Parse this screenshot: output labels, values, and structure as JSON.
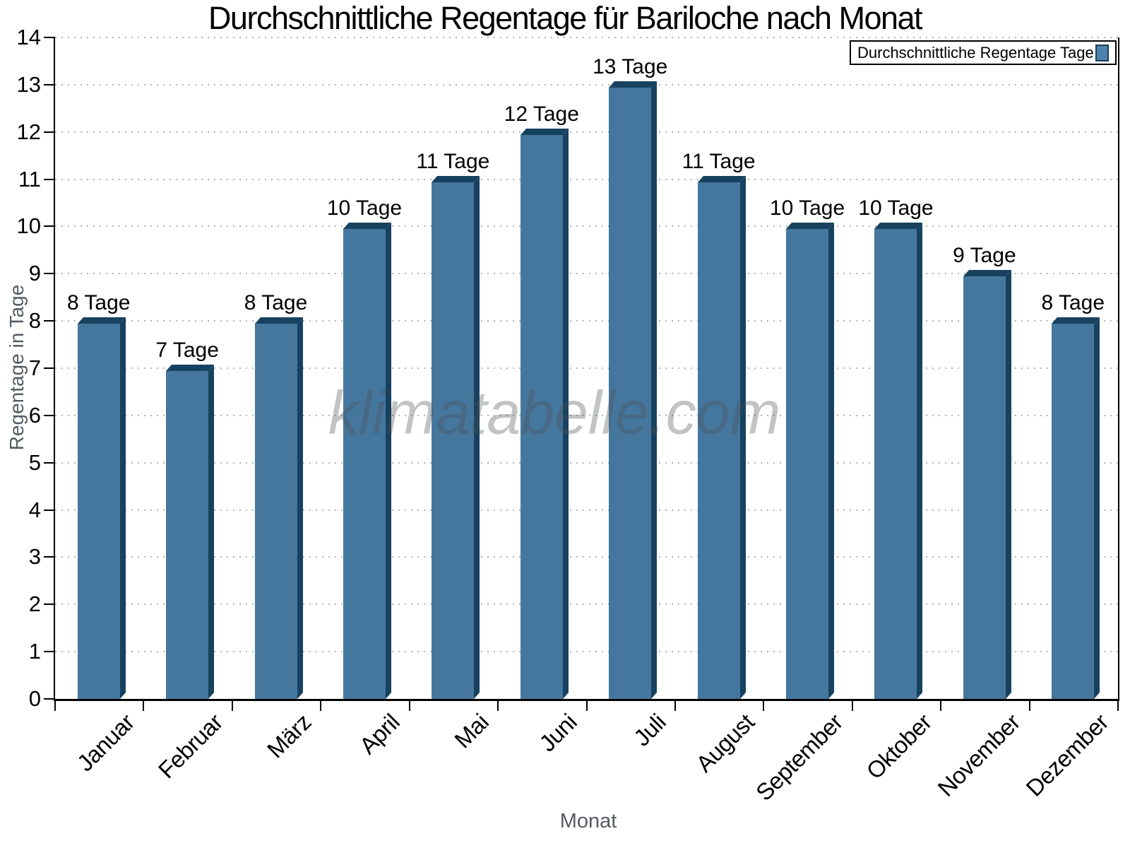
{
  "title": "Durchschnittliche Regentage für Bariloche nach Monat",
  "legend": {
    "label": "Durchschnittliche Regentage Tage"
  },
  "watermark": "klimatabelle.com",
  "chart_data": {
    "type": "bar",
    "title": "Durchschnittliche Regentage für Bariloche nach Monat",
    "categories": [
      "Januar",
      "Februar",
      "März",
      "April",
      "Mai",
      "Juni",
      "Juli",
      "August",
      "September",
      "Oktober",
      "November",
      "Dezember"
    ],
    "values": [
      8,
      7,
      8,
      10,
      11,
      12,
      13,
      11,
      10,
      10,
      9,
      8
    ],
    "bar_labels": [
      "8 Tage",
      "7 Tage",
      "8 Tage",
      "10 Tage",
      "11 Tage",
      "12 Tage",
      "13 Tage",
      "11 Tage",
      "10 Tage",
      "10 Tage",
      "9 Tage",
      "8 Tage"
    ],
    "xlabel": "Monat",
    "ylabel": "Regentage in Tage",
    "ylim": [
      0,
      14
    ],
    "ytick_step": 1,
    "ytick_labels": [
      "0",
      "1",
      "2",
      "3",
      "4",
      "5",
      "6",
      "7",
      "8",
      "9",
      "10",
      "11",
      "12",
      "13",
      "14"
    ],
    "grid": "horizontal-dotted",
    "legend_entry": "Durchschnittliche Regentage Tage",
    "legend_position": "top-right",
    "colors": {
      "bar_face": "#45779e",
      "bar_edge_dark": "#17425f",
      "legend_swatch": "#4e81ab",
      "gridline": "#b3b3b3",
      "axis": "#000000",
      "axis_title_gray": "#555b61",
      "watermark_gray": "#9a9da0"
    }
  }
}
